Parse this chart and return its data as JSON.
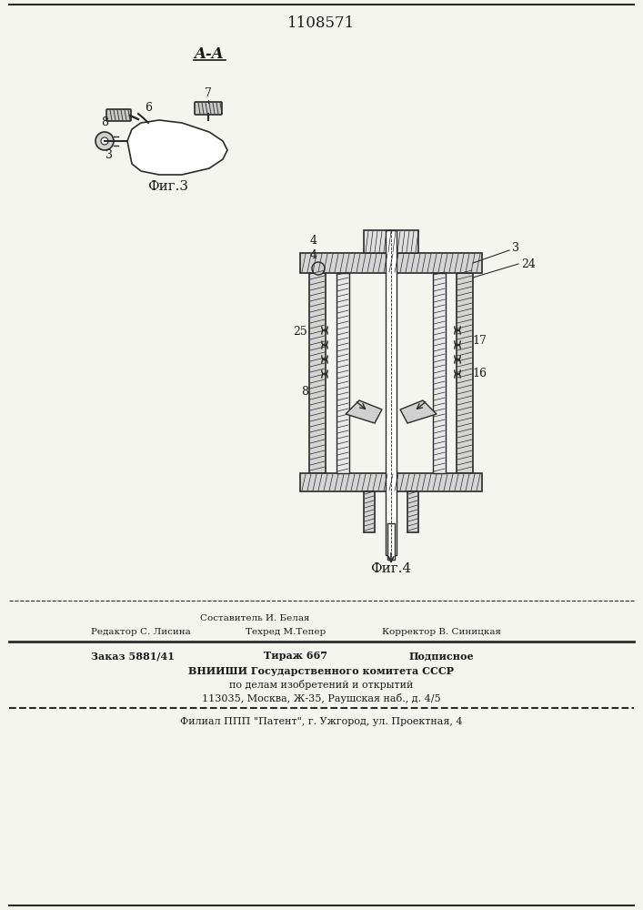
{
  "patent_number": "1108571",
  "title_line": "A-A",
  "fig3_label": "Фиг.3",
  "fig4_label": "Фиг.4",
  "footer_line1_col1": "Редактор С. Лисина",
  "footer_line1_col2": "Составитель И. Белая",
  "footer_line1_col3": "Корректор В. Синицкая",
  "footer_line2_col2": "Техред М.Тепер",
  "footer_order": "Заказ 5881/41",
  "footer_tirazh": "Тираж 667",
  "footer_podp": "Подписное",
  "footer_vniishi": "ВНИИШИ Государственного комитета СССР",
  "footer_dela": "по делам изобретений и открытий",
  "footer_address": "113035, Москва, Ж-35, Раушская наб., д. 4/5",
  "footer_filial": "Филиал ППП \"Патент\", г. Ужгород, ул. Проектная, 4",
  "bg_color": "#f5f5f0",
  "text_color": "#1a1a1a",
  "line_color": "#2a2a2a"
}
